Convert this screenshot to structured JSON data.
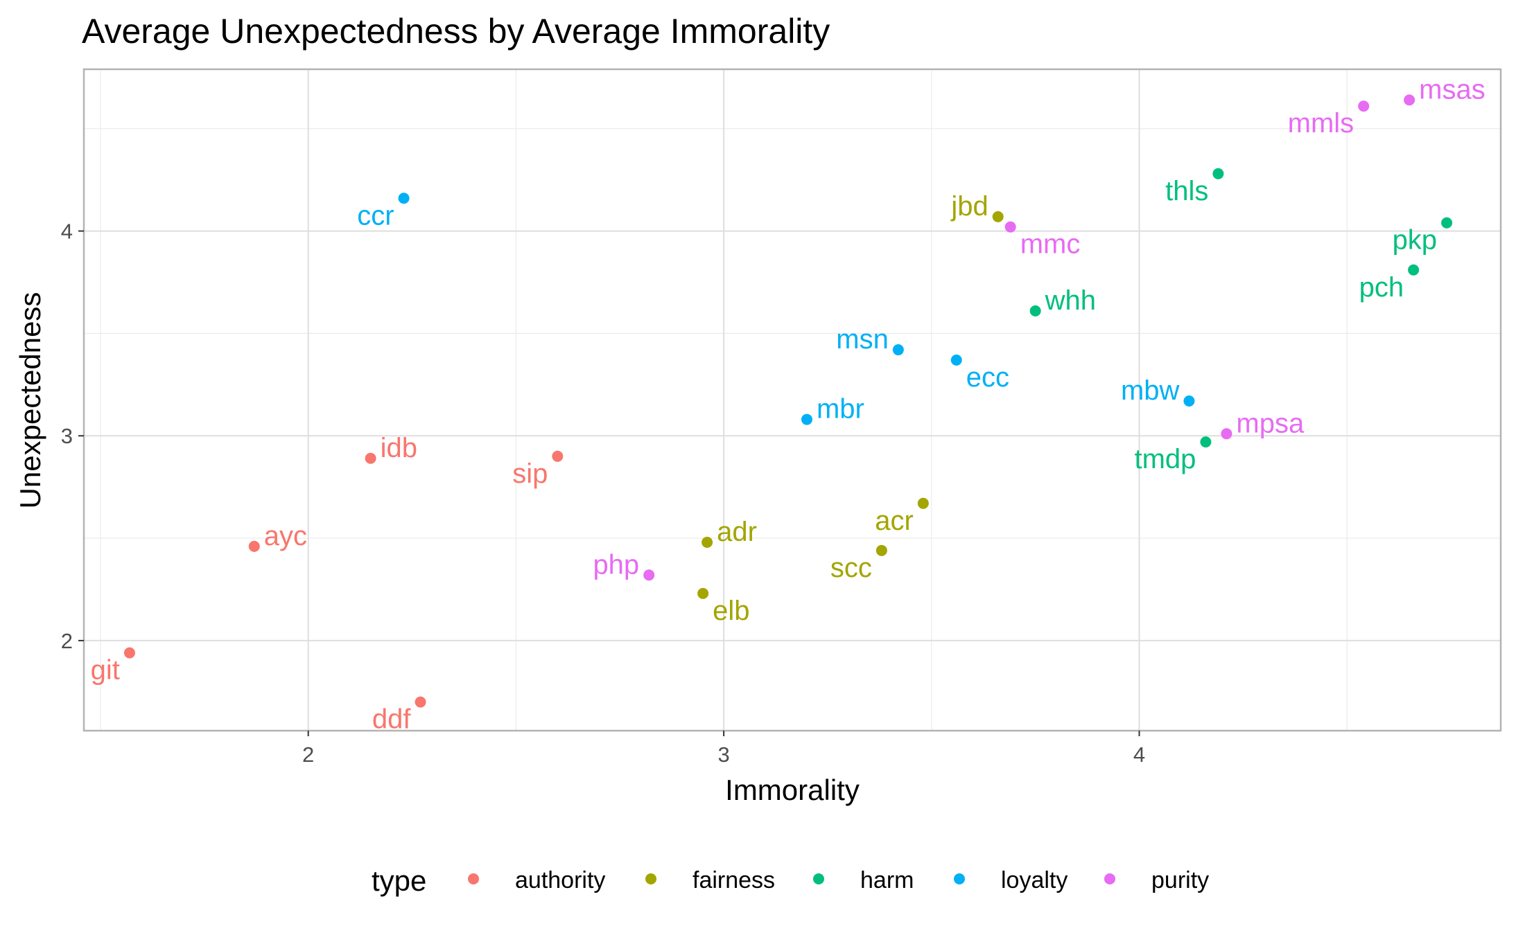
{
  "chart_data": {
    "type": "scatter",
    "title": "Average Unexpectedness by Average Immorality",
    "xlabel": "Immorality",
    "ylabel": "Unexpectedness",
    "xlim": [
      1.46,
      4.87
    ],
    "ylim": [
      1.56,
      4.79
    ],
    "x_ticks": [
      "2",
      "3",
      "4"
    ],
    "y_ticks": [
      "2",
      "3",
      "4"
    ],
    "grid": true,
    "legend": {
      "title": "type",
      "position": "bottom",
      "entries": [
        {
          "name": "authority",
          "color": "#F8766D"
        },
        {
          "name": "fairness",
          "color": "#A3A500"
        },
        {
          "name": "harm",
          "color": "#00BF7D"
        },
        {
          "name": "loyalty",
          "color": "#00B0F6"
        },
        {
          "name": "purity",
          "color": "#E76BF3"
        }
      ]
    },
    "points": [
      {
        "label": "git",
        "type": "authority",
        "x": 1.57,
        "y": 1.94
      },
      {
        "label": "ayc",
        "type": "authority",
        "x": 1.87,
        "y": 2.46
      },
      {
        "label": "idb",
        "type": "authority",
        "x": 2.15,
        "y": 2.89
      },
      {
        "label": "ddf",
        "type": "authority",
        "x": 2.27,
        "y": 1.7
      },
      {
        "label": "sip",
        "type": "authority",
        "x": 2.6,
        "y": 2.9
      },
      {
        "label": "adr",
        "type": "fairness",
        "x": 2.96,
        "y": 2.48
      },
      {
        "label": "elb",
        "type": "fairness",
        "x": 2.95,
        "y": 2.23
      },
      {
        "label": "scc",
        "type": "fairness",
        "x": 3.38,
        "y": 2.44
      },
      {
        "label": "acr",
        "type": "fairness",
        "x": 3.48,
        "y": 2.67
      },
      {
        "label": "jbd",
        "type": "fairness",
        "x": 3.66,
        "y": 4.07
      },
      {
        "label": "whh",
        "type": "harm",
        "x": 3.75,
        "y": 3.61
      },
      {
        "label": "thls",
        "type": "harm",
        "x": 4.19,
        "y": 4.28
      },
      {
        "label": "tmdp",
        "type": "harm",
        "x": 4.16,
        "y": 2.97
      },
      {
        "label": "pkp",
        "type": "harm",
        "x": 4.74,
        "y": 4.04
      },
      {
        "label": "pch",
        "type": "harm",
        "x": 4.66,
        "y": 3.81
      },
      {
        "label": "ccr",
        "type": "loyalty",
        "x": 2.23,
        "y": 4.16
      },
      {
        "label": "mbr",
        "type": "loyalty",
        "x": 3.2,
        "y": 3.08
      },
      {
        "label": "msn",
        "type": "loyalty",
        "x": 3.42,
        "y": 3.42
      },
      {
        "label": "ecc",
        "type": "loyalty",
        "x": 3.56,
        "y": 3.37
      },
      {
        "label": "mbw",
        "type": "loyalty",
        "x": 4.12,
        "y": 3.17
      },
      {
        "label": "php",
        "type": "purity",
        "x": 2.82,
        "y": 2.32
      },
      {
        "label": "mmc",
        "type": "purity",
        "x": 3.69,
        "y": 4.02
      },
      {
        "label": "mpsa",
        "type": "purity",
        "x": 4.21,
        "y": 3.01
      },
      {
        "label": "mmls",
        "type": "purity",
        "x": 4.54,
        "y": 4.61
      },
      {
        "label": "msas",
        "type": "purity",
        "x": 4.65,
        "y": 4.64
      }
    ]
  }
}
